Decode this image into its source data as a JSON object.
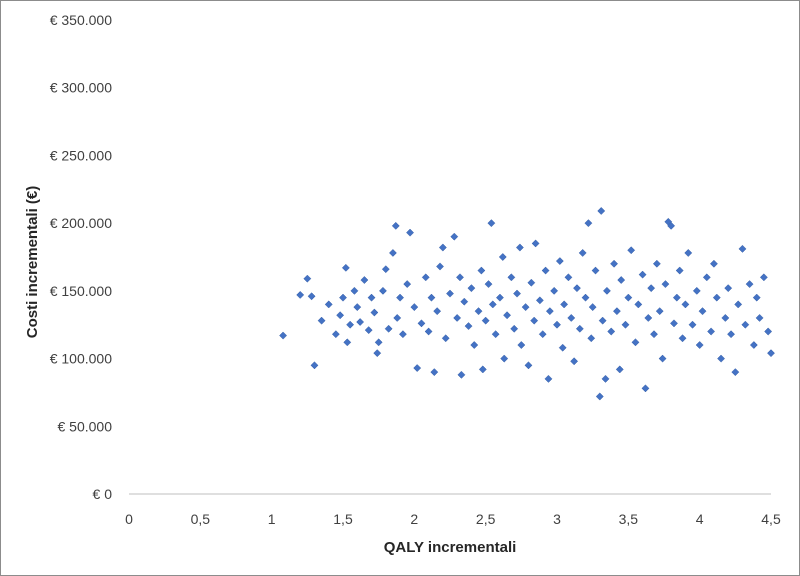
{
  "chart_data": {
    "type": "scatter",
    "title": "",
    "xlabel": "QALY incrementali",
    "ylabel": "Costi incrementali (€)",
    "xlim": [
      0,
      4.5
    ],
    "ylim": [
      0,
      350000
    ],
    "x_ticks": [
      0,
      0.5,
      1,
      1.5,
      2,
      2.5,
      3,
      3.5,
      4,
      4.5
    ],
    "x_tick_labels": [
      "0",
      "0,5",
      "1",
      "1,5",
      "2",
      "2,5",
      "3",
      "3,5",
      "4",
      "4,5"
    ],
    "y_ticks": [
      0,
      50000,
      100000,
      150000,
      200000,
      250000,
      300000,
      350000
    ],
    "y_tick_labels": [
      "€ 0",
      "€ 50.000",
      "€ 100.000",
      "€ 150.000",
      "€ 200.000",
      "€ 250.000",
      "€ 300.000",
      "€ 350.000"
    ],
    "grid": false,
    "legend": "none",
    "marker": "diamond",
    "color": "#4472C4",
    "series": [
      {
        "points": [
          [
            1.08,
            117000
          ],
          [
            1.2,
            147000
          ],
          [
            1.25,
            159000
          ],
          [
            1.28,
            146000
          ],
          [
            1.3,
            95000
          ],
          [
            1.35,
            128000
          ],
          [
            1.4,
            140000
          ],
          [
            1.45,
            118000
          ],
          [
            1.48,
            132000
          ],
          [
            1.5,
            145000
          ],
          [
            1.52,
            167000
          ],
          [
            1.53,
            112000
          ],
          [
            1.55,
            125000
          ],
          [
            1.58,
            150000
          ],
          [
            1.6,
            138000
          ],
          [
            1.62,
            127000
          ],
          [
            1.65,
            158000
          ],
          [
            1.68,
            121000
          ],
          [
            1.7,
            145000
          ],
          [
            1.72,
            134000
          ],
          [
            1.74,
            104000
          ],
          [
            1.75,
            112000
          ],
          [
            1.78,
            150000
          ],
          [
            1.8,
            166000
          ],
          [
            1.82,
            122000
          ],
          [
            1.85,
            178000
          ],
          [
            1.87,
            198000
          ],
          [
            1.88,
            130000
          ],
          [
            1.9,
            145000
          ],
          [
            1.92,
            118000
          ],
          [
            1.95,
            155000
          ],
          [
            1.97,
            193000
          ],
          [
            2.0,
            138000
          ],
          [
            2.02,
            93000
          ],
          [
            2.05,
            126000
          ],
          [
            2.08,
            160000
          ],
          [
            2.1,
            120000
          ],
          [
            2.12,
            145000
          ],
          [
            2.14,
            90000
          ],
          [
            2.16,
            135000
          ],
          [
            2.18,
            168000
          ],
          [
            2.2,
            182000
          ],
          [
            2.22,
            115000
          ],
          [
            2.25,
            148000
          ],
          [
            2.28,
            190000
          ],
          [
            2.3,
            130000
          ],
          [
            2.32,
            160000
          ],
          [
            2.33,
            88000
          ],
          [
            2.35,
            142000
          ],
          [
            2.38,
            124000
          ],
          [
            2.4,
            152000
          ],
          [
            2.42,
            110000
          ],
          [
            2.45,
            135000
          ],
          [
            2.47,
            165000
          ],
          [
            2.48,
            92000
          ],
          [
            2.5,
            128000
          ],
          [
            2.52,
            155000
          ],
          [
            2.54,
            200000
          ],
          [
            2.55,
            140000
          ],
          [
            2.57,
            118000
          ],
          [
            2.6,
            145000
          ],
          [
            2.62,
            175000
          ],
          [
            2.63,
            100000
          ],
          [
            2.65,
            132000
          ],
          [
            2.68,
            160000
          ],
          [
            2.7,
            122000
          ],
          [
            2.72,
            148000
          ],
          [
            2.74,
            182000
          ],
          [
            2.75,
            110000
          ],
          [
            2.78,
            138000
          ],
          [
            2.8,
            95000
          ],
          [
            2.82,
            156000
          ],
          [
            2.84,
            128000
          ],
          [
            2.85,
            185000
          ],
          [
            2.88,
            143000
          ],
          [
            2.9,
            118000
          ],
          [
            2.92,
            165000
          ],
          [
            2.94,
            85000
          ],
          [
            2.95,
            135000
          ],
          [
            2.98,
            150000
          ],
          [
            3.0,
            125000
          ],
          [
            3.02,
            172000
          ],
          [
            3.04,
            108000
          ],
          [
            3.05,
            140000
          ],
          [
            3.08,
            160000
          ],
          [
            3.1,
            130000
          ],
          [
            3.12,
            98000
          ],
          [
            3.14,
            152000
          ],
          [
            3.16,
            122000
          ],
          [
            3.18,
            178000
          ],
          [
            3.2,
            145000
          ],
          [
            3.22,
            200000
          ],
          [
            3.24,
            115000
          ],
          [
            3.25,
            138000
          ],
          [
            3.27,
            165000
          ],
          [
            3.3,
            72000
          ],
          [
            3.31,
            209000
          ],
          [
            3.32,
            128000
          ],
          [
            3.34,
            85000
          ],
          [
            3.35,
            150000
          ],
          [
            3.38,
            120000
          ],
          [
            3.4,
            170000
          ],
          [
            3.42,
            135000
          ],
          [
            3.44,
            92000
          ],
          [
            3.45,
            158000
          ],
          [
            3.48,
            125000
          ],
          [
            3.5,
            145000
          ],
          [
            3.52,
            180000
          ],
          [
            3.55,
            112000
          ],
          [
            3.57,
            140000
          ],
          [
            3.6,
            162000
          ],
          [
            3.62,
            78000
          ],
          [
            3.64,
            130000
          ],
          [
            3.66,
            152000
          ],
          [
            3.68,
            118000
          ],
          [
            3.7,
            170000
          ],
          [
            3.72,
            135000
          ],
          [
            3.74,
            100000
          ],
          [
            3.76,
            155000
          ],
          [
            3.78,
            201000
          ],
          [
            3.8,
            198000
          ],
          [
            3.82,
            126000
          ],
          [
            3.84,
            145000
          ],
          [
            3.86,
            165000
          ],
          [
            3.88,
            115000
          ],
          [
            3.9,
            140000
          ],
          [
            3.92,
            178000
          ],
          [
            3.95,
            125000
          ],
          [
            3.98,
            150000
          ],
          [
            4.0,
            110000
          ],
          [
            4.02,
            135000
          ],
          [
            4.05,
            160000
          ],
          [
            4.08,
            120000
          ],
          [
            4.1,
            170000
          ],
          [
            4.12,
            145000
          ],
          [
            4.15,
            100000
          ],
          [
            4.18,
            130000
          ],
          [
            4.2,
            152000
          ],
          [
            4.22,
            118000
          ],
          [
            4.25,
            90000
          ],
          [
            4.27,
            140000
          ],
          [
            4.3,
            181000
          ],
          [
            4.32,
            125000
          ],
          [
            4.35,
            155000
          ],
          [
            4.38,
            110000
          ],
          [
            4.4,
            145000
          ],
          [
            4.42,
            130000
          ],
          [
            4.45,
            160000
          ],
          [
            4.48,
            120000
          ],
          [
            4.5,
            104000
          ]
        ]
      }
    ]
  }
}
